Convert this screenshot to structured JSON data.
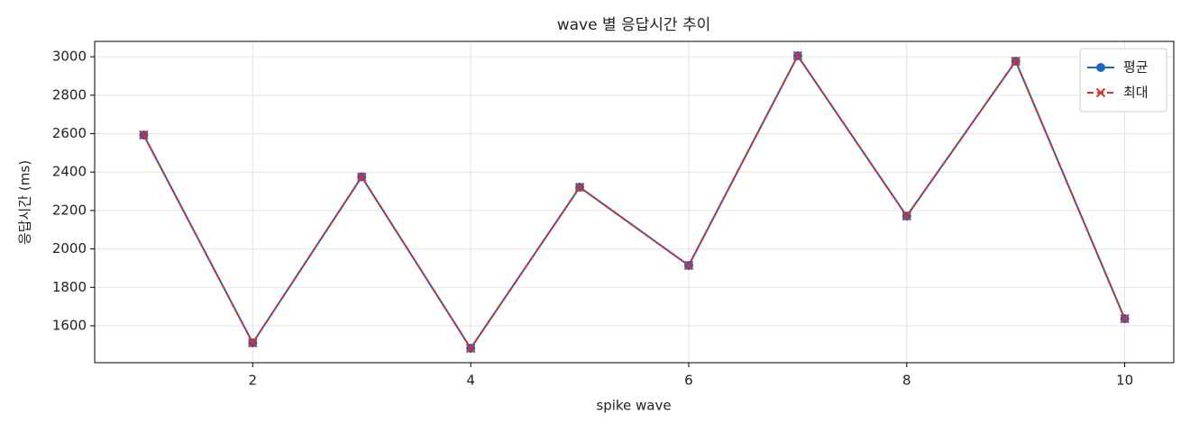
{
  "chart_data": {
    "type": "line",
    "title": "wave 별 응답시간 추이",
    "x_label": "spike wave",
    "y_label": "응답시간 (ms)",
    "x": [
      1,
      2,
      3,
      4,
      5,
      6,
      7,
      8,
      9,
      10
    ],
    "series": [
      {
        "name": "평균",
        "color": "#1f63c0",
        "marker": "o",
        "linestyle": "solid",
        "values": [
          2593,
          1511,
          2375,
          1483,
          2321,
          1914,
          3005,
          2171,
          2977,
          1637
        ]
      },
      {
        "name": "최대",
        "color": "#d0322e",
        "marker": "x",
        "linestyle": "dashed",
        "values": [
          2593,
          1511,
          2375,
          1483,
          2321,
          1914,
          3005,
          2171,
          2977,
          1637
        ]
      }
    ],
    "xlim": [
      0.55,
      10.45
    ],
    "xticks": [
      2,
      4,
      6,
      8,
      10
    ],
    "ylim": [
      1408,
      3080
    ],
    "yticks": [
      1600,
      1800,
      2000,
      2200,
      2400,
      2600,
      2800,
      3000
    ],
    "grid": true,
    "legend": "upper right"
  }
}
